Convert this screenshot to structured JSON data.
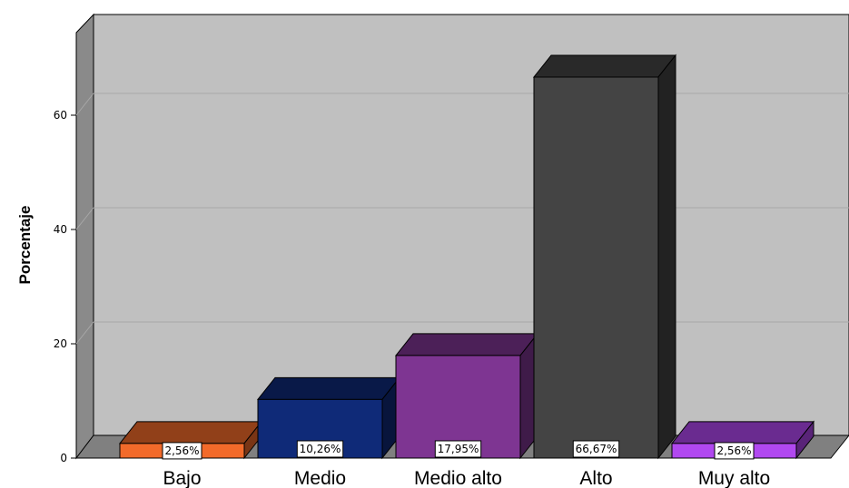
{
  "chart_data": {
    "type": "bar",
    "ylabel": "Porcentaje",
    "ylim": [
      0,
      72
    ],
    "yticks": [
      0,
      20,
      40,
      60
    ],
    "categories": [
      "Bajo",
      "Medio",
      "Medio alto",
      "Alto",
      "Muy alto"
    ],
    "values": [
      2.56,
      10.26,
      17.95,
      66.67,
      2.56
    ],
    "data_labels": [
      "2,56%",
      "10,26%",
      "17,95%",
      "66,67%",
      "2,56%"
    ],
    "colors": [
      "#f26a2a",
      "#0f2a78",
      "#7e3592",
      "#444444",
      "#b148f0"
    ],
    "grid": true,
    "legend": "none"
  }
}
